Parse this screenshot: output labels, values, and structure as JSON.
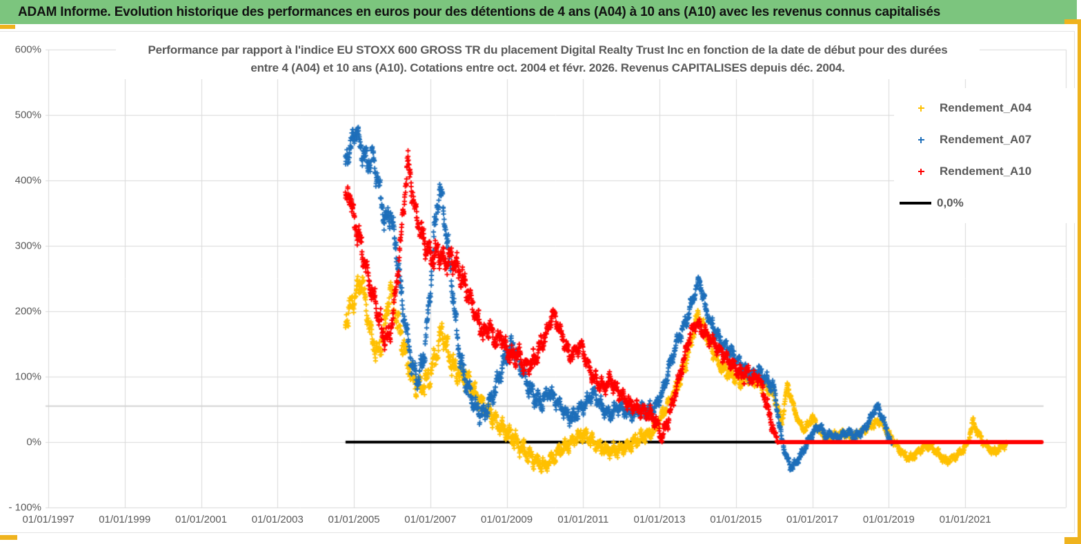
{
  "header": {
    "title": "ADAM Informe. Evolution historique des performances en euros pour des détentions de 4 ans (A04) à 10 ans (A10) avec les revenus connus capitalisés"
  },
  "colors": {
    "header_green": "#7cc57e",
    "frame_yellow": "#efb31e",
    "text_gray": "#595959",
    "gridline": "#d9d9d9",
    "series_a04": "#FFC000",
    "series_a07": "#1E6FBA",
    "series_a10": "#FF0000",
    "zero_line": "#000000",
    "reference_line": "#d2d2d2"
  },
  "legend": {
    "items": [
      {
        "label": "Rendement_A04",
        "marker": "plus",
        "color": "#FFC000"
      },
      {
        "label": "Rendement_A07",
        "marker": "plus",
        "color": "#1E6FBA"
      },
      {
        "label": "Rendement_A10",
        "marker": "plus",
        "color": "#FF0000"
      },
      {
        "label": "0,0%",
        "marker": "line",
        "color": "#000000"
      }
    ]
  },
  "chart_data": {
    "type": "scatter",
    "title_line1": "Performance par rapport à l'indice EU STOXX 600 GROSS TR  du placement Digital Realty Trust Inc en fonction de la date de début pour des durées",
    "title_line2": "entre 4 (A04) et 10 ans (A10). Cotations entre oct. 2004 et févr. 2026. Revenus CAPITALISES depuis déc. 2004.",
    "x_axis": {
      "tick_labels": [
        "01/01/1997",
        "01/01/1999",
        "01/01/2001",
        "01/01/2003",
        "01/01/2005",
        "01/01/2007",
        "01/01/2009",
        "01/01/2011",
        "01/01/2013",
        "01/01/2015",
        "01/01/2017",
        "01/01/2019",
        "01/01/2021"
      ],
      "tick_years": [
        1997,
        1999,
        2001,
        2003,
        2005,
        2007,
        2009,
        2011,
        2013,
        2015,
        2017,
        2019,
        2021
      ],
      "min_year": 1996.9,
      "max_year": 2023.6,
      "grid": true
    },
    "y_axis": {
      "tick_labels": [
        "600%",
        "500%",
        "400%",
        "300%",
        "200%",
        "100%",
        "0%",
        "- 100%"
      ],
      "tick_values": [
        600,
        500,
        400,
        300,
        200,
        100,
        0,
        -100
      ],
      "min": -100,
      "max": 600,
      "unit": "%",
      "grid": true
    },
    "reference_line": {
      "value_pct": 55,
      "x_from": 1997.0,
      "x_to": 2023.05,
      "color": "#d2d2d2"
    },
    "zero_line": {
      "label": "0,0%",
      "value_pct": 0,
      "x_from": 2004.78,
      "x_to": 2023.0,
      "color": "#000000"
    },
    "series": [
      {
        "name": "Rendement_A04",
        "color": "#FFC000",
        "marker": "plus",
        "keypoints": [
          [
            2004.78,
            185
          ],
          [
            2004.9,
            205
          ],
          [
            2005.05,
            225
          ],
          [
            2005.2,
            250
          ],
          [
            2005.35,
            195
          ],
          [
            2005.5,
            150
          ],
          [
            2005.65,
            135
          ],
          [
            2005.8,
            175
          ],
          [
            2005.95,
            235
          ],
          [
            2006.1,
            195
          ],
          [
            2006.25,
            160
          ],
          [
            2006.45,
            115
          ],
          [
            2006.6,
            90
          ],
          [
            2006.8,
            85
          ],
          [
            2007.0,
            105
          ],
          [
            2007.15,
            135
          ],
          [
            2007.3,
            170
          ],
          [
            2007.45,
            140
          ],
          [
            2007.6,
            115
          ],
          [
            2007.8,
            100
          ],
          [
            2008.0,
            95
          ],
          [
            2008.2,
            70
          ],
          [
            2008.4,
            55
          ],
          [
            2008.6,
            40
          ],
          [
            2008.8,
            25
          ],
          [
            2009.0,
            15
          ],
          [
            2009.2,
            5
          ],
          [
            2009.4,
            -10
          ],
          [
            2009.6,
            -22
          ],
          [
            2009.8,
            -30
          ],
          [
            2010.0,
            -36
          ],
          [
            2010.2,
            -25
          ],
          [
            2010.4,
            -12
          ],
          [
            2010.6,
            -5
          ],
          [
            2010.8,
            5
          ],
          [
            2010.95,
            12
          ],
          [
            2011.1,
            8
          ],
          [
            2011.3,
            -2
          ],
          [
            2011.5,
            -10
          ],
          [
            2011.7,
            -14
          ],
          [
            2011.9,
            -12
          ],
          [
            2012.1,
            -8
          ],
          [
            2012.3,
            -2
          ],
          [
            2012.5,
            6
          ],
          [
            2012.7,
            12
          ],
          [
            2012.9,
            22
          ],
          [
            2013.1,
            45
          ],
          [
            2013.3,
            65
          ],
          [
            2013.5,
            90
          ],
          [
            2013.7,
            125
          ],
          [
            2013.85,
            160
          ],
          [
            2014.0,
            195
          ],
          [
            2014.15,
            175
          ],
          [
            2014.3,
            155
          ],
          [
            2014.5,
            125
          ],
          [
            2014.7,
            110
          ],
          [
            2014.9,
            105
          ],
          [
            2015.1,
            92
          ],
          [
            2015.3,
            100
          ],
          [
            2015.5,
            95
          ],
          [
            2015.7,
            88
          ],
          [
            2015.9,
            80
          ],
          [
            2016.05,
            60
          ],
          [
            2016.2,
            30
          ],
          [
            2016.35,
            88
          ],
          [
            2016.5,
            55
          ],
          [
            2016.65,
            30
          ],
          [
            2016.8,
            18
          ],
          [
            2017.0,
            38
          ],
          [
            2017.2,
            15
          ],
          [
            2017.4,
            5
          ],
          [
            2017.6,
            10
          ],
          [
            2017.8,
            14
          ],
          [
            2018.0,
            8
          ],
          [
            2018.2,
            12
          ],
          [
            2018.4,
            20
          ],
          [
            2018.6,
            28
          ],
          [
            2018.8,
            32
          ],
          [
            2019.0,
            12
          ],
          [
            2019.2,
            -5
          ],
          [
            2019.4,
            -20
          ],
          [
            2019.55,
            -26
          ],
          [
            2019.7,
            -18
          ],
          [
            2019.9,
            -8
          ],
          [
            2020.1,
            -6
          ],
          [
            2020.3,
            -18
          ],
          [
            2020.5,
            -30
          ],
          [
            2020.7,
            -24
          ],
          [
            2020.9,
            -14
          ],
          [
            2021.05,
            -5
          ],
          [
            2021.2,
            30
          ],
          [
            2021.3,
            18
          ],
          [
            2021.45,
            2
          ],
          [
            2021.6,
            -8
          ],
          [
            2021.75,
            -16
          ],
          [
            2021.9,
            -10
          ],
          [
            2022.0,
            -4
          ],
          [
            2022.1,
            -2
          ]
        ]
      },
      {
        "name": "Rendement_A07",
        "color": "#1E6FBA",
        "marker": "plus",
        "keypoints": [
          [
            2004.78,
            430
          ],
          [
            2004.9,
            450
          ],
          [
            2005.05,
            480
          ],
          [
            2005.2,
            445
          ],
          [
            2005.35,
            430
          ],
          [
            2005.5,
            435
          ],
          [
            2005.65,
            395
          ],
          [
            2005.8,
            340
          ],
          [
            2005.95,
            350
          ],
          [
            2006.1,
            300
          ],
          [
            2006.25,
            220
          ],
          [
            2006.4,
            160
          ],
          [
            2006.55,
            110
          ],
          [
            2006.7,
            95
          ],
          [
            2006.85,
            140
          ],
          [
            2007.0,
            230
          ],
          [
            2007.1,
            320
          ],
          [
            2007.25,
            390
          ],
          [
            2007.35,
            350
          ],
          [
            2007.5,
            280
          ],
          [
            2007.65,
            190
          ],
          [
            2007.8,
            120
          ],
          [
            2008.0,
            80
          ],
          [
            2008.2,
            50
          ],
          [
            2008.4,
            42
          ],
          [
            2008.6,
            65
          ],
          [
            2008.8,
            100
          ],
          [
            2009.0,
            135
          ],
          [
            2009.15,
            148
          ],
          [
            2009.3,
            125
          ],
          [
            2009.5,
            95
          ],
          [
            2009.7,
            70
          ],
          [
            2009.9,
            60
          ],
          [
            2010.1,
            78
          ],
          [
            2010.3,
            62
          ],
          [
            2010.5,
            48
          ],
          [
            2010.7,
            35
          ],
          [
            2010.9,
            48
          ],
          [
            2011.1,
            62
          ],
          [
            2011.3,
            75
          ],
          [
            2011.5,
            52
          ],
          [
            2011.7,
            42
          ],
          [
            2011.9,
            55
          ],
          [
            2012.1,
            48
          ],
          [
            2012.3,
            42
          ],
          [
            2012.5,
            52
          ],
          [
            2012.7,
            48
          ],
          [
            2012.9,
            55
          ],
          [
            2013.1,
            80
          ],
          [
            2013.3,
            125
          ],
          [
            2013.5,
            160
          ],
          [
            2013.7,
            185
          ],
          [
            2013.9,
            225
          ],
          [
            2014.05,
            248
          ],
          [
            2014.2,
            205
          ],
          [
            2014.35,
            180
          ],
          [
            2014.5,
            165
          ],
          [
            2014.65,
            150
          ],
          [
            2014.8,
            142
          ],
          [
            2015.0,
            128
          ],
          [
            2015.2,
            112
          ],
          [
            2015.4,
            102
          ],
          [
            2015.6,
            108
          ],
          [
            2015.8,
            95
          ],
          [
            2016.0,
            80
          ],
          [
            2016.15,
            20
          ],
          [
            2016.3,
            -20
          ],
          [
            2016.45,
            -40
          ],
          [
            2016.6,
            -30
          ],
          [
            2016.75,
            -15
          ],
          [
            2016.9,
            2
          ],
          [
            2017.05,
            18
          ],
          [
            2017.2,
            25
          ],
          [
            2017.35,
            8
          ],
          [
            2017.5,
            12
          ],
          [
            2017.65,
            6
          ],
          [
            2017.8,
            12
          ],
          [
            2017.95,
            16
          ],
          [
            2018.1,
            8
          ],
          [
            2018.25,
            14
          ],
          [
            2018.4,
            22
          ],
          [
            2018.55,
            40
          ],
          [
            2018.7,
            55
          ],
          [
            2018.85,
            35
          ],
          [
            2019.0,
            8
          ],
          [
            2019.1,
            -8
          ]
        ]
      },
      {
        "name": "Rendement_A10",
        "color": "#FF0000",
        "marker": "plus",
        "zero_tail": [
          2016.1,
          2023.0
        ],
        "keypoints": [
          [
            2004.78,
            365
          ],
          [
            2004.88,
            385
          ],
          [
            2005.0,
            340
          ],
          [
            2005.15,
            310
          ],
          [
            2005.3,
            270
          ],
          [
            2005.45,
            235
          ],
          [
            2005.6,
            205
          ],
          [
            2005.75,
            165
          ],
          [
            2005.9,
            155
          ],
          [
            2006.05,
            205
          ],
          [
            2006.2,
            290
          ],
          [
            2006.3,
            360
          ],
          [
            2006.4,
            430
          ],
          [
            2006.5,
            395
          ],
          [
            2006.6,
            355
          ],
          [
            2006.75,
            320
          ],
          [
            2006.9,
            300
          ],
          [
            2007.05,
            280
          ],
          [
            2007.2,
            292
          ],
          [
            2007.35,
            275
          ],
          [
            2007.5,
            282
          ],
          [
            2007.65,
            272
          ],
          [
            2007.8,
            255
          ],
          [
            2007.95,
            235
          ],
          [
            2008.1,
            210
          ],
          [
            2008.25,
            185
          ],
          [
            2008.4,
            165
          ],
          [
            2008.55,
            178
          ],
          [
            2008.7,
            152
          ],
          [
            2008.85,
            162
          ],
          [
            2009.0,
            140
          ],
          [
            2009.15,
            128
          ],
          [
            2009.3,
            136
          ],
          [
            2009.45,
            115
          ],
          [
            2009.6,
            118
          ],
          [
            2009.75,
            128
          ],
          [
            2009.9,
            148
          ],
          [
            2010.05,
            168
          ],
          [
            2010.2,
            198
          ],
          [
            2010.35,
            178
          ],
          [
            2010.5,
            155
          ],
          [
            2010.65,
            132
          ],
          [
            2010.8,
            140
          ],
          [
            2010.95,
            148
          ],
          [
            2011.1,
            122
          ],
          [
            2011.25,
            100
          ],
          [
            2011.4,
            90
          ],
          [
            2011.55,
            84
          ],
          [
            2011.7,
            95
          ],
          [
            2011.85,
            82
          ],
          [
            2012.0,
            72
          ],
          [
            2012.15,
            62
          ],
          [
            2012.3,
            55
          ],
          [
            2012.45,
            50
          ],
          [
            2012.6,
            46
          ],
          [
            2012.75,
            42
          ],
          [
            2012.9,
            32
          ],
          [
            2013.05,
            8
          ],
          [
            2013.2,
            28
          ],
          [
            2013.35,
            62
          ],
          [
            2013.5,
            95
          ],
          [
            2013.65,
            130
          ],
          [
            2013.8,
            165
          ],
          [
            2013.95,
            182
          ],
          [
            2014.1,
            172
          ],
          [
            2014.25,
            162
          ],
          [
            2014.4,
            152
          ],
          [
            2014.55,
            142
          ],
          [
            2014.7,
            132
          ],
          [
            2014.85,
            122
          ],
          [
            2015.0,
            112
          ],
          [
            2015.15,
            102
          ],
          [
            2015.3,
            106
          ],
          [
            2015.45,
            96
          ],
          [
            2015.6,
            100
          ],
          [
            2015.75,
            70
          ],
          [
            2015.9,
            35
          ],
          [
            2016.0,
            15
          ],
          [
            2016.1,
            2
          ]
        ]
      }
    ]
  }
}
